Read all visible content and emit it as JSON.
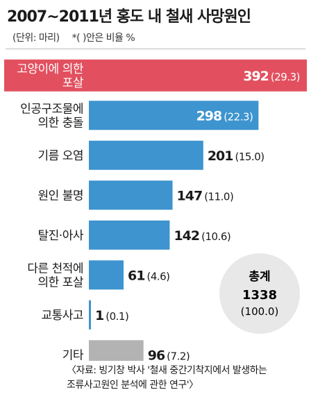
{
  "title": "2007~2011년 홍도 내 철새 사망원인",
  "unit_note": "(단위: 마리)",
  "pct_note": "*( )안은 비율 %",
  "total": {
    "label": "총계",
    "value": "1338",
    "pct": "(100.0)"
  },
  "source": {
    "line1": "〈자료: 빙기창 박사 '철새 중간기착지에서 발생하는",
    "line2": "조류사고원인 분석에 관한 연구'〉"
  },
  "colors": {
    "highlight_bar": "#e2505f",
    "bar": "#3d94cf",
    "other_bar": "#b3b3b3",
    "highlight_row_bg": "#e2505f",
    "circle_fill": "#e8e8e8"
  },
  "chart_data": {
    "type": "bar",
    "orientation": "horizontal",
    "categories": [
      [
        "고양이에 의한",
        "포살"
      ],
      [
        "인공구조물에",
        "의한 충돌"
      ],
      [
        "기름 오염"
      ],
      [
        "원인 불명"
      ],
      [
        "탈진·아사"
      ],
      [
        "다른 천적에",
        "의한 포살"
      ],
      [
        "교통사고"
      ],
      [
        "기타"
      ]
    ],
    "values": [
      392,
      298,
      201,
      147,
      142,
      61,
      1,
      96
    ],
    "percent_labels": [
      "(29.3)",
      "(22.3)",
      "(15.0)",
      "(11.0)",
      "(10.6)",
      "(4.6)",
      "(0.1)",
      "(7.2)"
    ],
    "value_labels": [
      "392",
      "298",
      "201",
      "147",
      "142",
      "61",
      "1",
      "96"
    ],
    "highlight_index": 0,
    "other_index": 7
  }
}
